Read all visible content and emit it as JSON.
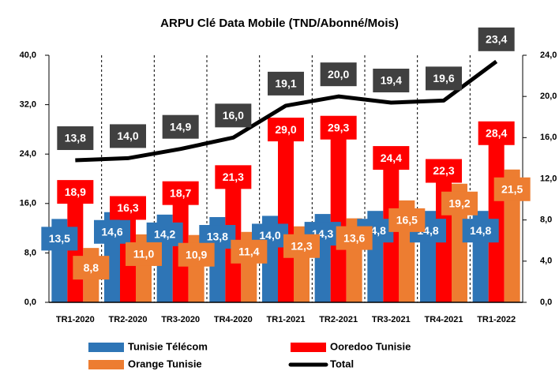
{
  "chart_data": {
    "type": "bar",
    "title": "ARPU Clé Data Mobile (TND/Abonné/Mois)",
    "categories": [
      "TR1-2020",
      "TR2-2020",
      "TR3-2020",
      "TR4-2020",
      "TR1-2021",
      "TR2-2021",
      "TR3-2021",
      "TR4-2021",
      "TR1-2022"
    ],
    "series": [
      {
        "name": "Tunisie Télécom",
        "color": "#2E75B6",
        "values": [
          13.5,
          14.6,
          14.2,
          13.8,
          14.0,
          14.3,
          14.8,
          14.8,
          14.8
        ],
        "value_labels": [
          "13,5",
          "14,6",
          "14,2",
          "13,8",
          "14,0",
          "14,3",
          "14,8",
          "14,8",
          "14,8"
        ]
      },
      {
        "name": "Ooredoo Tunisie",
        "color": "#FF0000",
        "values": [
          18.9,
          16.3,
          18.7,
          21.3,
          29.0,
          29.3,
          24.4,
          22.3,
          28.4
        ],
        "value_labels": [
          "18,9",
          "16,3",
          "18,7",
          "21,3",
          "29,0",
          "29,3",
          "24,4",
          "22,3",
          "28,4"
        ]
      },
      {
        "name": "Orange Tunisie",
        "color": "#ED7D31",
        "values": [
          8.8,
          11.0,
          10.9,
          11.4,
          12.3,
          13.6,
          16.5,
          19.2,
          21.5
        ],
        "value_labels": [
          "8,8",
          "11,0",
          "10,9",
          "11,4",
          "12,3",
          "13,6",
          "16,5",
          "19,2",
          "21,5"
        ]
      },
      {
        "name": "Total",
        "color": "#000000",
        "type": "line",
        "axis": "y2",
        "values": [
          13.8,
          14.0,
          14.9,
          16.0,
          19.1,
          20.0,
          19.4,
          19.6,
          23.4
        ],
        "value_labels": [
          "13,8",
          "14,0",
          "14,9",
          "16,0",
          "19,1",
          "20,0",
          "19,4",
          "19,6",
          "23,4"
        ]
      }
    ],
    "ylim": [
      0,
      40
    ],
    "yticks": [
      {
        "value": 0,
        "label": "0,0"
      },
      {
        "value": 8,
        "label": "8,0"
      },
      {
        "value": 16,
        "label": "16,0"
      },
      {
        "value": 24,
        "label": "24,0"
      },
      {
        "value": 32,
        "label": "32,0"
      },
      {
        "value": 40,
        "label": "40,0"
      }
    ],
    "y2lim": [
      0,
      24
    ],
    "y2ticks": [
      {
        "value": 0,
        "label": "0,0"
      },
      {
        "value": 4,
        "label": "4,0"
      },
      {
        "value": 8,
        "label": "8,0"
      },
      {
        "value": 12,
        "label": "12,0"
      },
      {
        "value": 16,
        "label": "16,0"
      },
      {
        "value": 20,
        "label": "20,0"
      },
      {
        "value": 24,
        "label": "24,0"
      }
    ],
    "legend": "bottom"
  }
}
